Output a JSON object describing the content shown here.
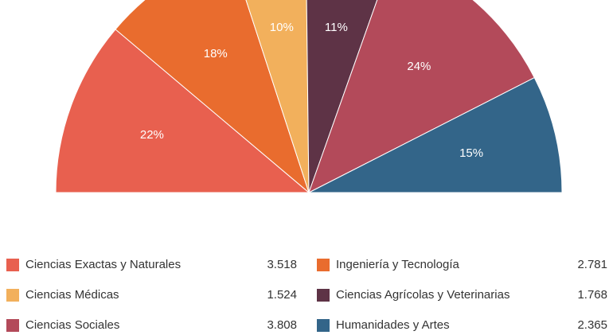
{
  "chart_data": {
    "type": "pie",
    "semicircle": true,
    "categories": [
      "Ciencias Exactas y Naturales",
      "Ingeniería y Tecnología",
      "Ciencias Médicas",
      "Ciencias Agrícolas y Veterinarias",
      "Ciencias Sociales",
      "Humanidades y Artes"
    ],
    "values": [
      3518,
      2781,
      1524,
      1768,
      3808,
      2365
    ],
    "value_labels": [
      "3.518",
      "2.781",
      "1.524",
      "1.768",
      "3.808",
      "2.365"
    ],
    "percent_labels": [
      "22%",
      "18%",
      "10%",
      "11%",
      "24%",
      "15%"
    ],
    "colors": [
      "#e8604f",
      "#e96c2e",
      "#f2b05c",
      "#5e3346",
      "#b34a5a",
      "#336589"
    ],
    "legend": "bottom"
  }
}
